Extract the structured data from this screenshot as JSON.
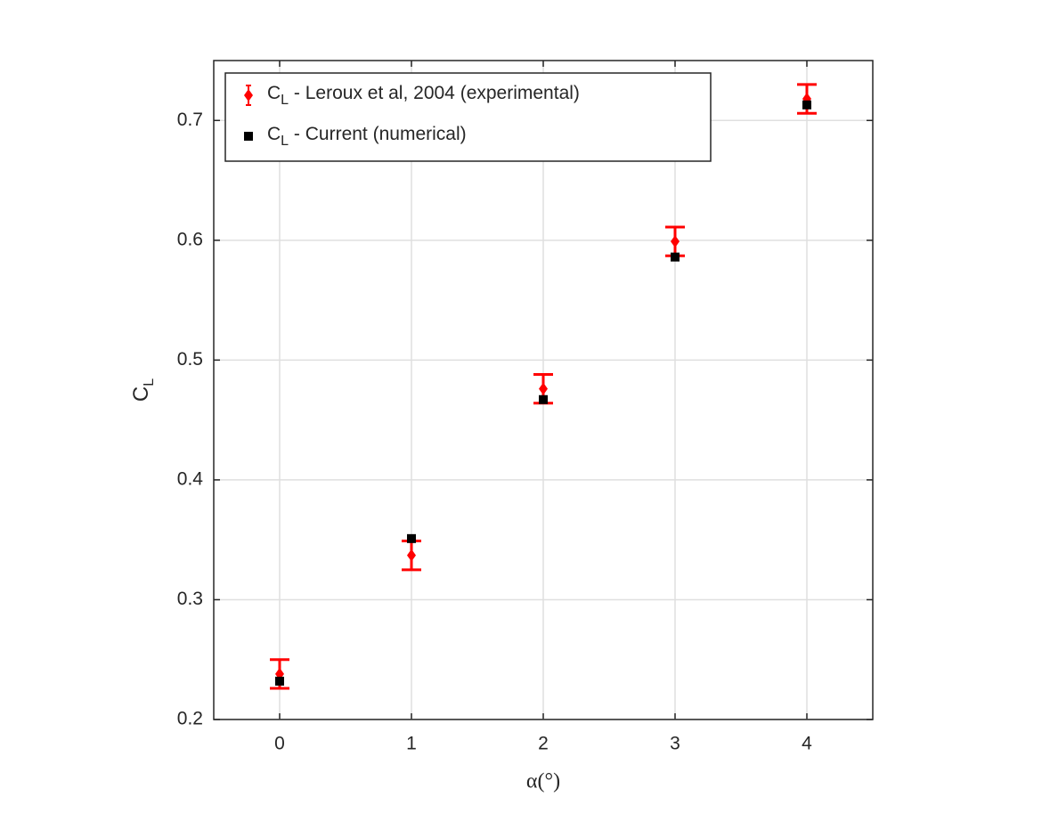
{
  "chart_data": {
    "type": "scatter",
    "x_label": "α(°)",
    "y_label": "CL",
    "x": [
      0,
      1,
      2,
      3,
      4
    ],
    "xlim": [
      -0.5,
      4.5
    ],
    "xticks": [
      0,
      1,
      2,
      3,
      4
    ],
    "ylim": [
      0.2,
      0.75
    ],
    "yticks": [
      0.2,
      0.3,
      0.4,
      0.5,
      0.6,
      0.7
    ],
    "grid": true,
    "legend_position": "upper-left",
    "series": [
      {
        "name": "CL - Leroux et al, 2004 (experimental)",
        "color": "#ff0000",
        "marker": "diamond",
        "values": [
          0.238,
          0.337,
          0.476,
          0.599,
          0.718
        ],
        "errors": [
          0.012,
          0.012,
          0.012,
          0.012,
          0.012
        ]
      },
      {
        "name": "CL - Current (numerical)",
        "color": "#000000",
        "marker": "square",
        "values": [
          0.232,
          0.351,
          0.467,
          0.586,
          0.713
        ]
      }
    ]
  }
}
